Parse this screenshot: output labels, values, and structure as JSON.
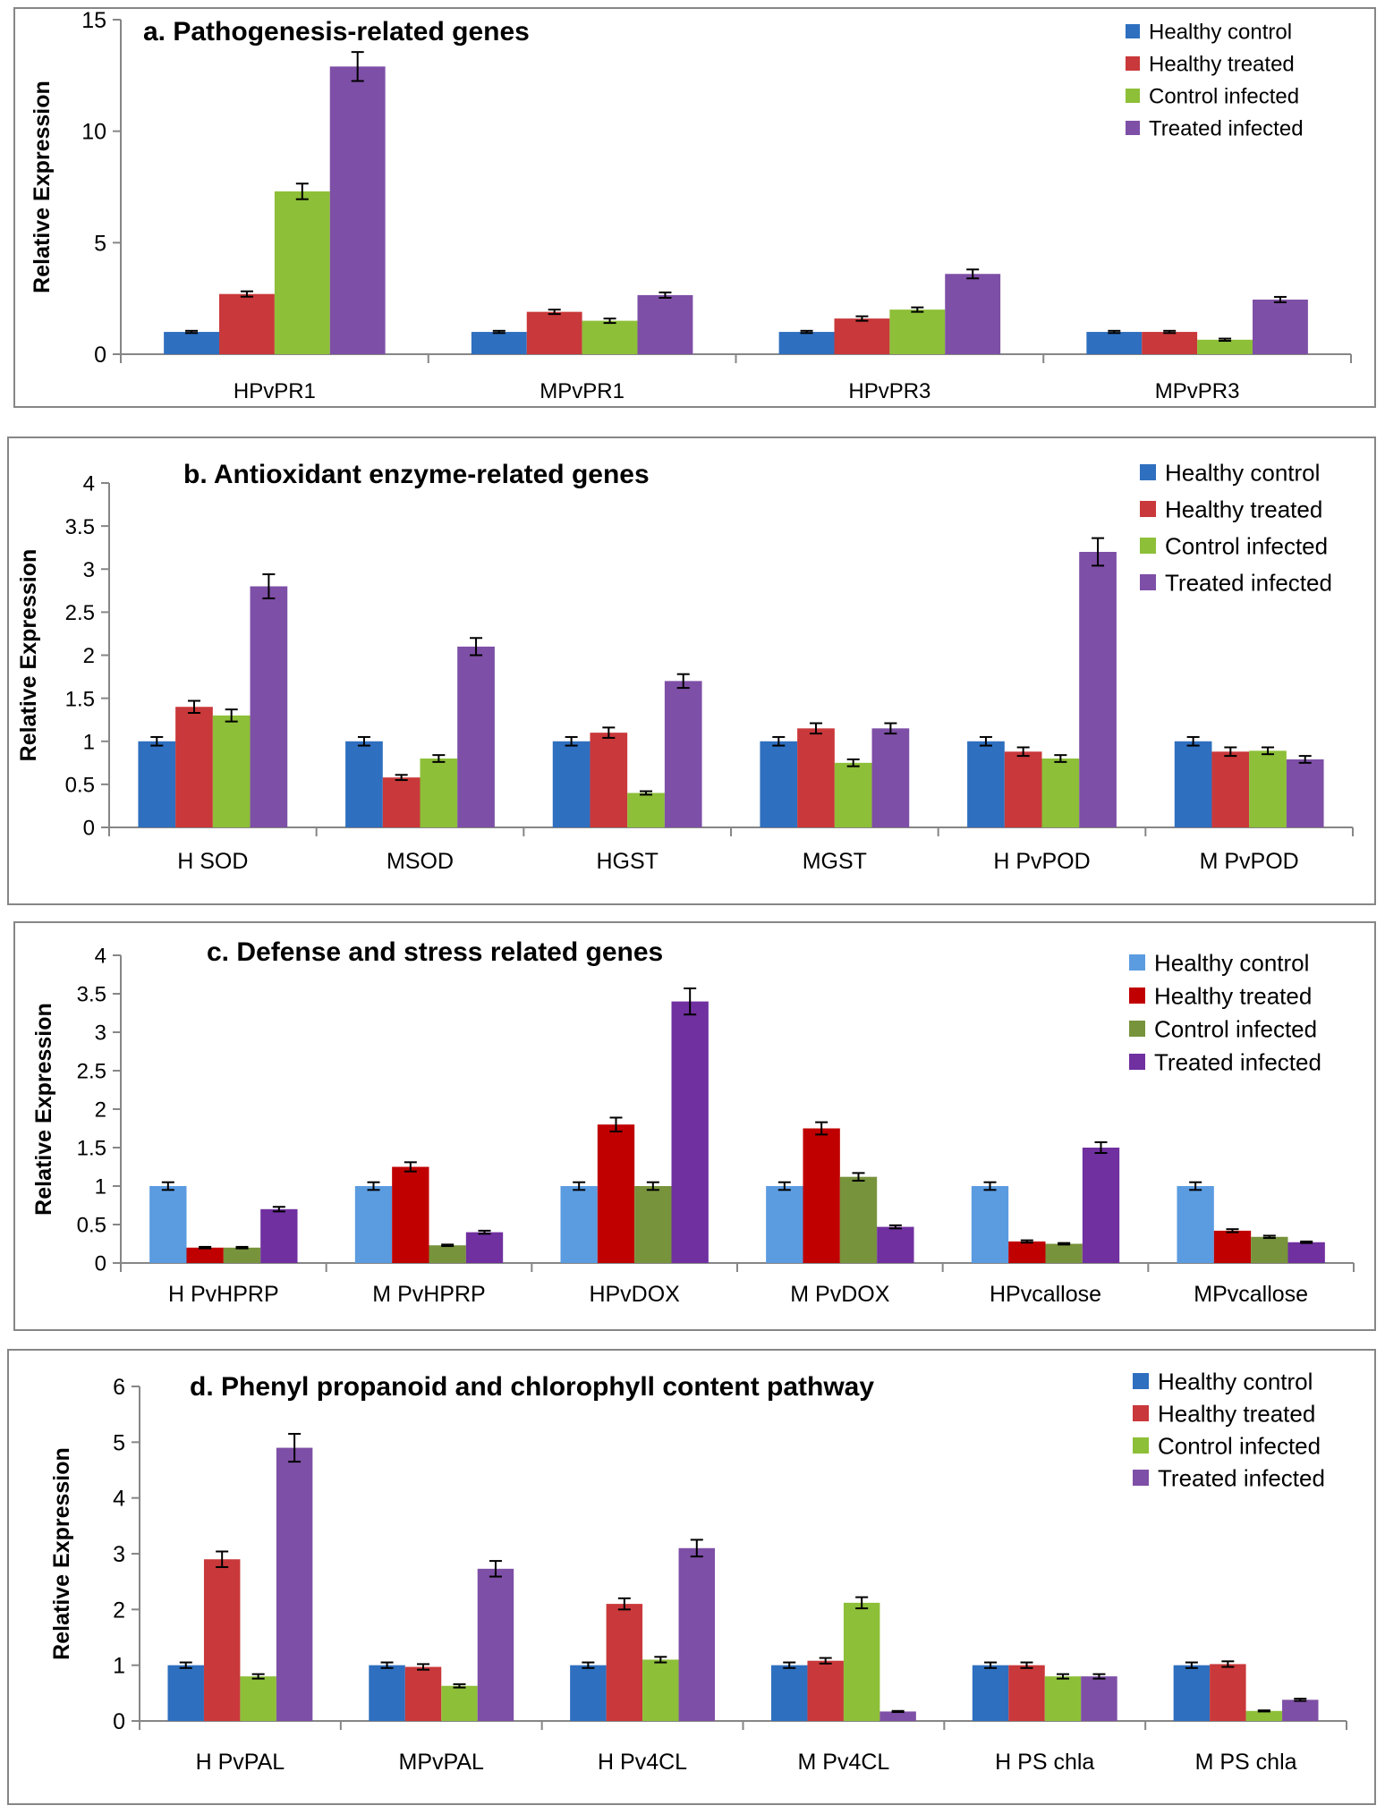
{
  "legend_labels": [
    "Healthy control",
    "Healthy treated",
    "Control infected",
    "Treated infected"
  ],
  "palettes": {
    "standard": [
      "#2E6FBF",
      "#C9383A",
      "#8DBF38",
      "#7E4FA6"
    ],
    "vivid": [
      "#5B9BE0",
      "#C00000",
      "#77933C",
      "#7030A0"
    ]
  },
  "ylabel": "Relative Expression",
  "chart_data": [
    {
      "type": "bar",
      "title": "a. Pathogenesis-related genes",
      "ylabel": "Relative Expression",
      "ylim": [
        0,
        15
      ],
      "yticks": [
        "0",
        "5",
        "10",
        "15"
      ],
      "categories": [
        "HPvPR1",
        "MPvPR1",
        "HPvPR3",
        "MPvPR3"
      ],
      "palette": "standard",
      "series": [
        {
          "name": "Healthy control",
          "values": [
            1,
            1,
            1,
            1
          ],
          "errors": [
            0.05,
            0.05,
            0.05,
            0.05
          ]
        },
        {
          "name": "Healthy treated",
          "values": [
            2.7,
            1.9,
            1.6,
            1.0
          ],
          "errors": [
            0.12,
            0.1,
            0.1,
            0.05
          ]
        },
        {
          "name": "Control infected",
          "values": [
            7.3,
            1.5,
            2.0,
            0.65
          ],
          "errors": [
            0.35,
            0.1,
            0.1,
            0.05
          ]
        },
        {
          "name": "Treated infected",
          "values": [
            12.9,
            2.65,
            3.6,
            2.45
          ],
          "errors": [
            0.65,
            0.12,
            0.2,
            0.12
          ]
        }
      ]
    },
    {
      "type": "bar",
      "title": "b. Antioxidant enzyme-related genes",
      "ylabel": "Relative Expression",
      "ylim": [
        0,
        4
      ],
      "yticks": [
        "0",
        "0.5",
        "1",
        "1.5",
        "2",
        "2.5",
        "3",
        "3.5",
        "4"
      ],
      "categories": [
        "H SOD",
        "MSOD",
        "HGST",
        "MGST",
        "H PvPOD",
        "M PvPOD"
      ],
      "palette": "standard",
      "series": [
        {
          "name": "Healthy control",
          "values": [
            1,
            1,
            1,
            1,
            1,
            1
          ],
          "errors": [
            0.05,
            0.05,
            0.05,
            0.05,
            0.05,
            0.05
          ]
        },
        {
          "name": "Healthy treated",
          "values": [
            1.4,
            0.58,
            1.1,
            1.15,
            0.88,
            0.88
          ],
          "errors": [
            0.07,
            0.03,
            0.06,
            0.06,
            0.05,
            0.05
          ]
        },
        {
          "name": "Control infected",
          "values": [
            1.3,
            0.8,
            0.4,
            0.75,
            0.8,
            0.89
          ],
          "errors": [
            0.07,
            0.04,
            0.02,
            0.04,
            0.04,
            0.04
          ]
        },
        {
          "name": "Treated infected",
          "values": [
            2.8,
            2.1,
            1.7,
            1.15,
            3.2,
            0.79
          ],
          "errors": [
            0.14,
            0.1,
            0.08,
            0.06,
            0.16,
            0.04
          ]
        }
      ]
    },
    {
      "type": "bar",
      "title": "c. Defense and stress related genes",
      "ylabel": "Relative Expression",
      "ylim": [
        0,
        4
      ],
      "yticks": [
        "0",
        "0.5",
        "1",
        "1.5",
        "2",
        "2.5",
        "3",
        "3.5",
        "4"
      ],
      "categories": [
        "H PvHPRP",
        "M PvHPRP",
        "HPvDOX",
        "M PvDOX",
        "HPvcallose",
        "MPvcallose"
      ],
      "palette": "vivid",
      "series": [
        {
          "name": "Healthy control",
          "values": [
            1,
            1,
            1,
            1,
            1,
            1
          ],
          "errors": [
            0.05,
            0.05,
            0.05,
            0.05,
            0.05,
            0.05
          ]
        },
        {
          "name": "Healthy treated",
          "values": [
            0.2,
            1.25,
            1.8,
            1.75,
            0.28,
            0.42
          ],
          "errors": [
            0.01,
            0.06,
            0.09,
            0.08,
            0.015,
            0.02
          ]
        },
        {
          "name": "Control infected",
          "values": [
            0.2,
            0.23,
            1.0,
            1.12,
            0.25,
            0.34
          ],
          "errors": [
            0.01,
            0.01,
            0.05,
            0.05,
            0.01,
            0.015
          ]
        },
        {
          "name": "Treated infected",
          "values": [
            0.7,
            0.4,
            3.4,
            0.47,
            1.5,
            0.27
          ],
          "errors": [
            0.03,
            0.02,
            0.17,
            0.02,
            0.07,
            0.01
          ]
        }
      ]
    },
    {
      "type": "bar",
      "title": "d. Phenyl propanoid and chlorophyll content pathway",
      "ylabel": "Relative Expression",
      "ylim": [
        0,
        6
      ],
      "yticks": [
        "0",
        "1",
        "2",
        "3",
        "4",
        "5",
        "6"
      ],
      "categories": [
        "H PvPAL",
        "MPvPAL",
        "H Pv4CL",
        "M Pv4CL",
        "H PS chla",
        "M PS chla"
      ],
      "palette": "standard",
      "series": [
        {
          "name": "Healthy control",
          "values": [
            1,
            1,
            1,
            1,
            1,
            1
          ],
          "errors": [
            0.05,
            0.05,
            0.05,
            0.05,
            0.05,
            0.05
          ]
        },
        {
          "name": "Healthy treated",
          "values": [
            2.9,
            0.97,
            2.1,
            1.08,
            1.0,
            1.02
          ],
          "errors": [
            0.14,
            0.05,
            0.1,
            0.05,
            0.05,
            0.05
          ]
        },
        {
          "name": "Control infected",
          "values": [
            0.8,
            0.63,
            1.1,
            2.12,
            0.8,
            0.18
          ],
          "errors": [
            0.04,
            0.03,
            0.05,
            0.1,
            0.04,
            0.01
          ]
        },
        {
          "name": "Treated infected",
          "values": [
            4.9,
            2.73,
            3.1,
            0.17,
            0.8,
            0.38
          ],
          "errors": [
            0.25,
            0.14,
            0.15,
            0.01,
            0.04,
            0.02
          ]
        }
      ]
    }
  ]
}
